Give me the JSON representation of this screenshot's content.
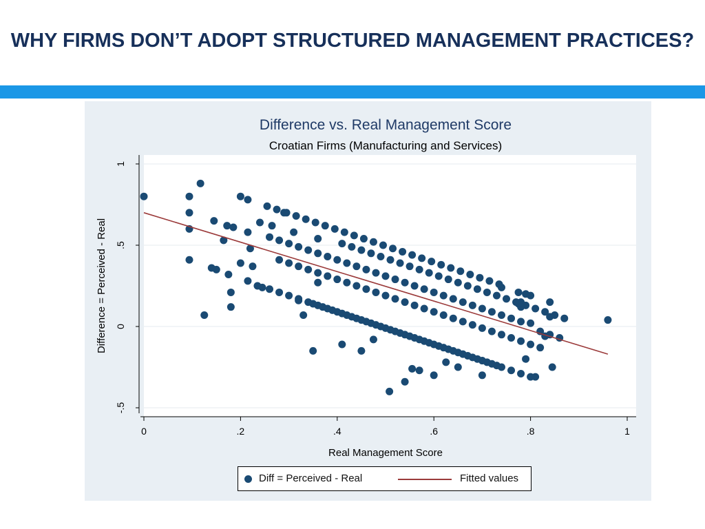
{
  "slide": {
    "title": "WHY FIRMS DON’T ADOPT STRUCTURED MANAGEMENT PRACTICES?",
    "band_color": "#1b97e6",
    "title_color": "#17305a"
  },
  "chart_data": {
    "type": "scatter",
    "title": "Difference vs. Real Management Score",
    "subtitle": "Croatian Firms (Manufacturing and Services)",
    "xlabel": "Real Management Score",
    "ylabel": "Difference = Perceived - Real",
    "xlim": [
      0,
      1
    ],
    "ylim": [
      -0.5,
      1
    ],
    "xticks": [
      0,
      0.2,
      0.4,
      0.6,
      0.8,
      1
    ],
    "xtick_labels": [
      "0",
      ".2",
      ".4",
      ".6",
      ".8",
      "1"
    ],
    "yticks": [
      -0.5,
      0,
      0.5,
      1
    ],
    "ytick_labels": [
      "-.5",
      "0",
      ".5",
      "1"
    ],
    "grid": "horizontal",
    "legend_position": "bottom",
    "colors": {
      "points": "#1a4a73",
      "fit": "#9b3a3a"
    },
    "series": [
      {
        "name": "Diff = Perceived - Real",
        "kind": "scatter",
        "points": [
          [
            0.0,
            0.8
          ],
          [
            0.094,
            0.8
          ],
          [
            0.094,
            0.7
          ],
          [
            0.094,
            0.6
          ],
          [
            0.094,
            0.41
          ],
          [
            0.117,
            0.88
          ],
          [
            0.125,
            0.07
          ],
          [
            0.145,
            0.65
          ],
          [
            0.14,
            0.36
          ],
          [
            0.15,
            0.35
          ],
          [
            0.165,
            0.53
          ],
          [
            0.172,
            0.62
          ],
          [
            0.175,
            0.32
          ],
          [
            0.18,
            0.21
          ],
          [
            0.18,
            0.12
          ],
          [
            0.185,
            0.61
          ],
          [
            0.2,
            0.8
          ],
          [
            0.2,
            0.39
          ],
          [
            0.215,
            0.78
          ],
          [
            0.215,
            0.58
          ],
          [
            0.215,
            0.28
          ],
          [
            0.22,
            0.48
          ],
          [
            0.225,
            0.37
          ],
          [
            0.235,
            0.25
          ],
          [
            0.24,
            0.64
          ],
          [
            0.245,
            0.24
          ],
          [
            0.265,
            0.62
          ],
          [
            0.29,
            0.7
          ],
          [
            0.31,
            0.58
          ],
          [
            0.32,
            0.16
          ],
          [
            0.33,
            0.07
          ],
          [
            0.35,
            -0.15
          ],
          [
            0.36,
            0.27
          ],
          [
            0.36,
            0.54
          ],
          [
            0.41,
            -0.11
          ],
          [
            0.45,
            -0.15
          ],
          [
            0.475,
            -0.08
          ],
          [
            0.54,
            -0.34
          ],
          [
            0.508,
            -0.4
          ],
          [
            0.555,
            -0.26
          ],
          [
            0.57,
            -0.27
          ],
          [
            0.6,
            -0.3
          ],
          [
            0.625,
            -0.22
          ],
          [
            0.65,
            -0.25
          ],
          [
            0.7,
            -0.3
          ],
          [
            0.74,
            0.24
          ],
          [
            0.775,
            0.21
          ],
          [
            0.79,
            0.2
          ],
          [
            0.8,
            0.19
          ],
          [
            0.78,
            0.15
          ],
          [
            0.8,
            0.02
          ],
          [
            0.82,
            -0.03
          ],
          [
            0.83,
            -0.06
          ],
          [
            0.84,
            -0.05
          ],
          [
            0.78,
            0.12
          ],
          [
            0.79,
            -0.2
          ],
          [
            0.81,
            -0.31
          ],
          [
            0.845,
            -0.25
          ],
          [
            0.86,
            -0.07
          ],
          [
            0.84,
            0.06
          ],
          [
            0.84,
            0.15
          ],
          [
            0.96,
            0.04
          ],
          [
            0.775,
            0.14
          ]
        ],
        "bands": [
          {
            "x_from": 0.255,
            "x_to": 0.75,
            "y_at_start": 0.74,
            "step": 0.02,
            "label_note": "upper diagonal"
          },
          {
            "x_from": 0.26,
            "x_to": 0.78,
            "y_at_start": 0.55,
            "step": 0.02,
            "label_note": "second diagonal"
          },
          {
            "x_from": 0.28,
            "x_to": 0.82,
            "y_at_start": 0.41,
            "step": 0.02,
            "label_note": "third diagonal"
          },
          {
            "x_from": 0.26,
            "x_to": 0.8,
            "y_at_start": 0.23,
            "step": 0.02,
            "label_note": "fourth diagonal"
          },
          {
            "x_from": 0.35,
            "x_to": 0.73,
            "y_at_start": 0.14,
            "step": 0.02,
            "label_note": "fifth diagonal"
          },
          {
            "x_from": 0.41,
            "x_to": 0.88,
            "y_at_start": 0.51,
            "step": 0.02,
            "label_note": "sixth diagonal"
          }
        ]
      },
      {
        "name": "Fitted values",
        "kind": "line",
        "points": [
          [
            0.0,
            0.7
          ],
          [
            0.96,
            -0.17
          ]
        ]
      }
    ]
  }
}
